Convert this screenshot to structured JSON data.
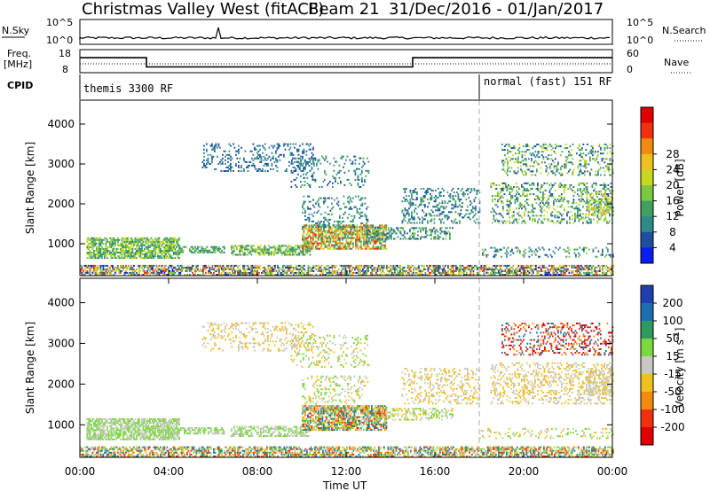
{
  "header": {
    "title": "Christmas Valley West (fitACF)",
    "beam": "Beam 21",
    "date_range": "31/Dec/2016 - 01/Jan/2017"
  },
  "sky_panel": {
    "left_label": "N.Sky",
    "right_label": "N.Search",
    "left_ticks": [
      "10^5",
      "10^0"
    ],
    "right_ticks": [
      "10^5",
      "10^0"
    ]
  },
  "freq_panel": {
    "left_label_1": "Freq.",
    "left_label_2": "[MHz]",
    "left_ticks": [
      "18",
      "8"
    ],
    "right_ticks": [
      "60",
      "0"
    ],
    "right_label": "Nave",
    "freq_steps": [
      {
        "t0": 0,
        "t1": 3,
        "mhz": 14.5
      },
      {
        "t0": 3,
        "t1": 15,
        "mhz": 10.5
      },
      {
        "t0": 15,
        "t1": 24,
        "mhz": 14.5
      }
    ]
  },
  "cpid": {
    "label": "CPID",
    "segments": [
      {
        "text": "themis 3300 RF",
        "start_hour": 0
      },
      {
        "text": "normal (fast) 151 RF",
        "start_hour": 18
      }
    ]
  },
  "chart_data": [
    {
      "type": "heatmap",
      "ylabel": "Slant Range [km]",
      "xlabel": "",
      "ylim": [
        200,
        4600
      ],
      "yticks": [
        1000,
        2000,
        3000,
        4000
      ],
      "xlim": [
        0,
        24
      ],
      "colorbar": {
        "label": "Power [dB]",
        "ticks": [
          "4",
          "8",
          "12",
          "16",
          "20",
          "24",
          "28"
        ],
        "colors": [
          "#0a1cf0",
          "#1f4fa0",
          "#2f8a8a",
          "#3fa060",
          "#7cc840",
          "#c8d820",
          "#f0c020",
          "#f08a10",
          "#f03010",
          "#e00000"
        ]
      }
    },
    {
      "type": "heatmap",
      "ylabel": "Slant Range [km]",
      "xlabel": "Time UT",
      "ylim": [
        200,
        4600
      ],
      "yticks": [
        1000,
        2000,
        3000,
        4000
      ],
      "xlim": [
        0,
        24
      ],
      "xticks": [
        "00:00",
        "04:00",
        "08:00",
        "12:00",
        "16:00",
        "20:00",
        "00:00"
      ],
      "colorbar": {
        "label": "Velocity [m s-1]",
        "ticks": [
          "200",
          "100",
          "50",
          "15",
          "-15",
          "-50",
          "-100",
          "-200"
        ],
        "colors": [
          "#1f3fb0",
          "#1f6fb0",
          "#2f9a60",
          "#7cd840",
          "#c8c8c0",
          "#f0c020",
          "#f08a10",
          "#f03010",
          "#e00000"
        ]
      }
    }
  ]
}
